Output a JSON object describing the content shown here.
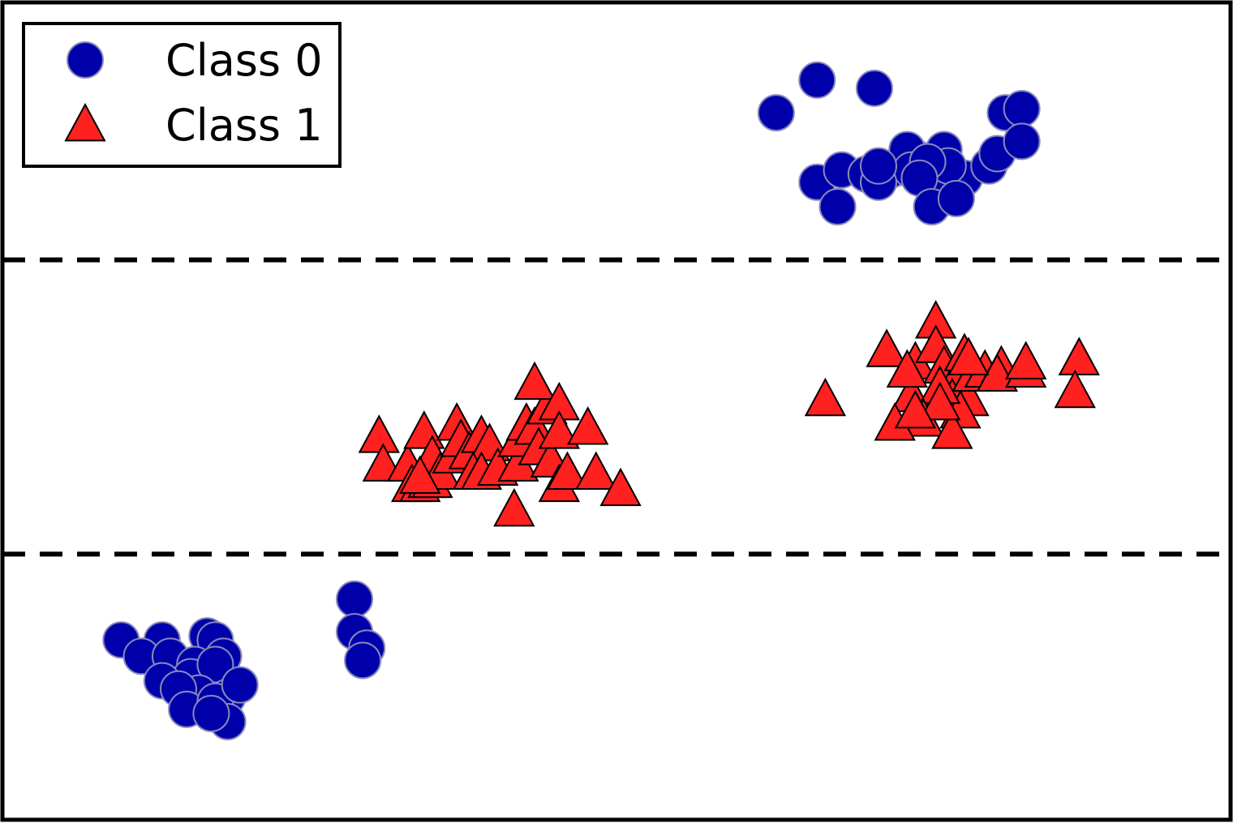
{
  "chart_data": {
    "type": "scatter",
    "title": "",
    "xlabel": "",
    "ylabel": "",
    "xlim": [
      -1.5,
      1.5
    ],
    "ylim": [
      -1.0,
      1.0
    ],
    "grid": false,
    "legend": {
      "placement": "upper-left"
    },
    "colors": {
      "class0_fill": "#0000aa",
      "class0_edge": "#8888bb",
      "class1_fill": "#ff2020",
      "class1_edge": "#000000",
      "dashed_line": "#000000"
    },
    "reference_lines": [
      {
        "orientation": "horizontal",
        "y": 0.37,
        "style": "dashed"
      },
      {
        "orientation": "horizontal",
        "y": -0.35,
        "style": "dashed"
      }
    ],
    "series": [
      {
        "name": "Class 0",
        "marker": "circle",
        "points": [
          [
            0.39,
            0.73
          ],
          [
            0.49,
            0.81
          ],
          [
            0.63,
            0.79
          ],
          [
            0.49,
            0.56
          ],
          [
            0.55,
            0.59
          ],
          [
            0.61,
            0.58
          ],
          [
            0.67,
            0.59
          ],
          [
            0.73,
            0.62
          ],
          [
            0.8,
            0.64
          ],
          [
            0.85,
            0.57
          ],
          [
            0.95,
            0.73
          ],
          [
            0.99,
            0.74
          ],
          [
            0.91,
            0.6
          ],
          [
            0.93,
            0.63
          ],
          [
            0.99,
            0.66
          ],
          [
            0.78,
            0.57
          ],
          [
            0.81,
            0.6
          ],
          [
            0.71,
            0.64
          ],
          [
            0.72,
            0.59
          ],
          [
            0.76,
            0.61
          ],
          [
            0.74,
            0.57
          ],
          [
            0.64,
            0.56
          ],
          [
            0.64,
            0.6
          ],
          [
            0.54,
            0.5
          ],
          [
            0.77,
            0.5
          ],
          [
            0.83,
            0.52
          ],
          [
            -1.21,
            -0.56
          ],
          [
            -1.11,
            -0.56
          ],
          [
            -1.0,
            -0.55
          ],
          [
            -0.98,
            -0.56
          ],
          [
            -1.16,
            -0.6
          ],
          [
            -1.09,
            -0.6
          ],
          [
            -1.03,
            -0.62
          ],
          [
            -0.96,
            -0.6
          ],
          [
            -1.04,
            -0.65
          ],
          [
            -0.98,
            -0.62
          ],
          [
            -1.11,
            -0.66
          ],
          [
            -1.02,
            -0.69
          ],
          [
            -0.95,
            -0.7
          ],
          [
            -1.07,
            -0.68
          ],
          [
            -1.05,
            -0.73
          ],
          [
            -0.98,
            -0.71
          ],
          [
            -0.95,
            -0.76
          ],
          [
            -0.99,
            -0.74
          ],
          [
            -0.92,
            -0.67
          ],
          [
            -0.64,
            -0.46
          ],
          [
            -0.64,
            -0.54
          ],
          [
            -0.61,
            -0.58
          ],
          [
            -0.62,
            -0.61
          ]
        ]
      },
      {
        "name": "Class 1",
        "marker": "triangle",
        "points": [
          [
            -0.58,
            -0.06
          ],
          [
            -0.57,
            -0.13
          ],
          [
            -0.51,
            -0.13
          ],
          [
            -0.5,
            -0.18
          ],
          [
            -0.48,
            -0.18
          ],
          [
            -0.46,
            -0.17
          ],
          [
            -0.45,
            -0.17
          ],
          [
            -0.47,
            -0.05
          ],
          [
            -0.45,
            -0.11
          ],
          [
            -0.43,
            -0.15
          ],
          [
            -0.4,
            -0.11
          ],
          [
            -0.39,
            -0.03
          ],
          [
            -0.38,
            -0.07
          ],
          [
            -0.36,
            -0.1
          ],
          [
            -0.33,
            -0.06
          ],
          [
            -0.31,
            -0.08
          ],
          [
            -0.35,
            -0.15
          ],
          [
            -0.33,
            -0.15
          ],
          [
            -0.29,
            -0.14
          ],
          [
            -0.24,
            -0.13
          ],
          [
            -0.24,
            -0.07
          ],
          [
            -0.22,
            -0.03
          ],
          [
            -0.2,
            -0.04
          ],
          [
            -0.19,
            -0.09
          ],
          [
            -0.16,
            -0.12
          ],
          [
            -0.14,
            -0.18
          ],
          [
            -0.12,
            -0.15
          ],
          [
            -0.17,
            0.01
          ],
          [
            -0.2,
            0.07
          ],
          [
            -0.14,
            0.02
          ],
          [
            -0.14,
            -0.05
          ],
          [
            -0.07,
            -0.04
          ],
          [
            -0.05,
            -0.15
          ],
          [
            0.01,
            -0.19
          ],
          [
            -0.25,
            -0.24
          ],
          [
            -0.48,
            -0.16
          ],
          [
            0.51,
            0.03
          ],
          [
            0.66,
            0.15
          ],
          [
            0.73,
            0.12
          ],
          [
            0.72,
            0.04
          ],
          [
            0.78,
            0.22
          ],
          [
            0.78,
            0.16
          ],
          [
            0.8,
            0.11
          ],
          [
            0.83,
            0.08
          ],
          [
            0.85,
            0.14
          ],
          [
            0.82,
            0.03
          ],
          [
            0.86,
            0.03
          ],
          [
            0.84,
            0.0
          ],
          [
            0.87,
            0.09
          ],
          [
            0.9,
            0.1
          ],
          [
            0.94,
            0.11
          ],
          [
            0.93,
            0.09
          ],
          [
            0.79,
            0.06
          ],
          [
            0.75,
            -0.02
          ],
          [
            0.82,
            -0.05
          ],
          [
            0.79,
            0.02
          ],
          [
            0.71,
            0.1
          ],
          [
            0.86,
            0.13
          ],
          [
            1.0,
            0.1
          ],
          [
            1.0,
            0.12
          ],
          [
            1.13,
            0.13
          ],
          [
            1.12,
            0.05
          ],
          [
            0.68,
            -0.03
          ],
          [
            0.73,
            0.0
          ]
        ]
      }
    ]
  }
}
